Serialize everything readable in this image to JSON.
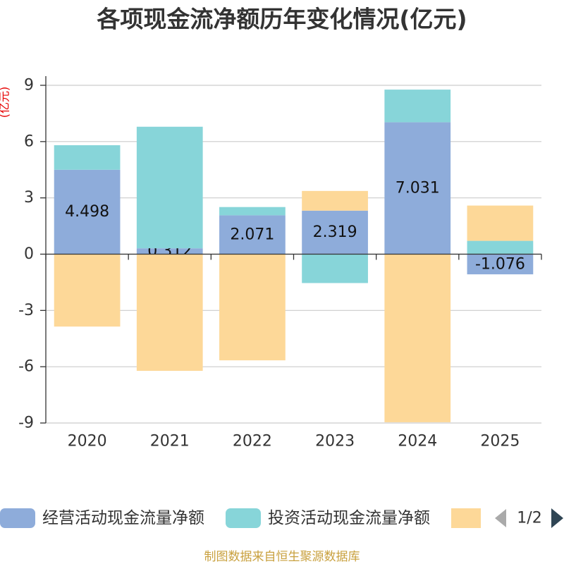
{
  "chart_data": {
    "type": "bar",
    "stacked": true,
    "title": "各项现金流净额历年变化情况(亿元)",
    "xlabel": "",
    "ylabel": "(亿元)",
    "categories": [
      "2020",
      "2021",
      "2022",
      "2023",
      "2024",
      "2025"
    ],
    "ylim": [
      -9,
      9
    ],
    "yticks": [
      9,
      6,
      3,
      0,
      -3,
      -6,
      -9
    ],
    "grid": true,
    "legend_position": "bottom",
    "series": [
      {
        "name": "经营活动现金流量净额",
        "color": "#8eacda",
        "show_labels": true,
        "values": [
          4.498,
          0.312,
          2.071,
          2.319,
          7.031,
          -1.076
        ]
      },
      {
        "name": "投资活动现金流量净额",
        "color": "#87d5d9",
        "show_labels": false,
        "values": [
          1.31,
          6.48,
          0.44,
          -1.54,
          1.74,
          0.71
        ]
      },
      {
        "color": "#fdd898",
        "show_labels": false,
        "values": [
          -3.86,
          -6.22,
          -5.66,
          1.05,
          -8.96,
          1.88
        ]
      }
    ]
  },
  "legend": {
    "pager": "1/2"
  },
  "footer": "制图数据来自恒生聚源数据库"
}
